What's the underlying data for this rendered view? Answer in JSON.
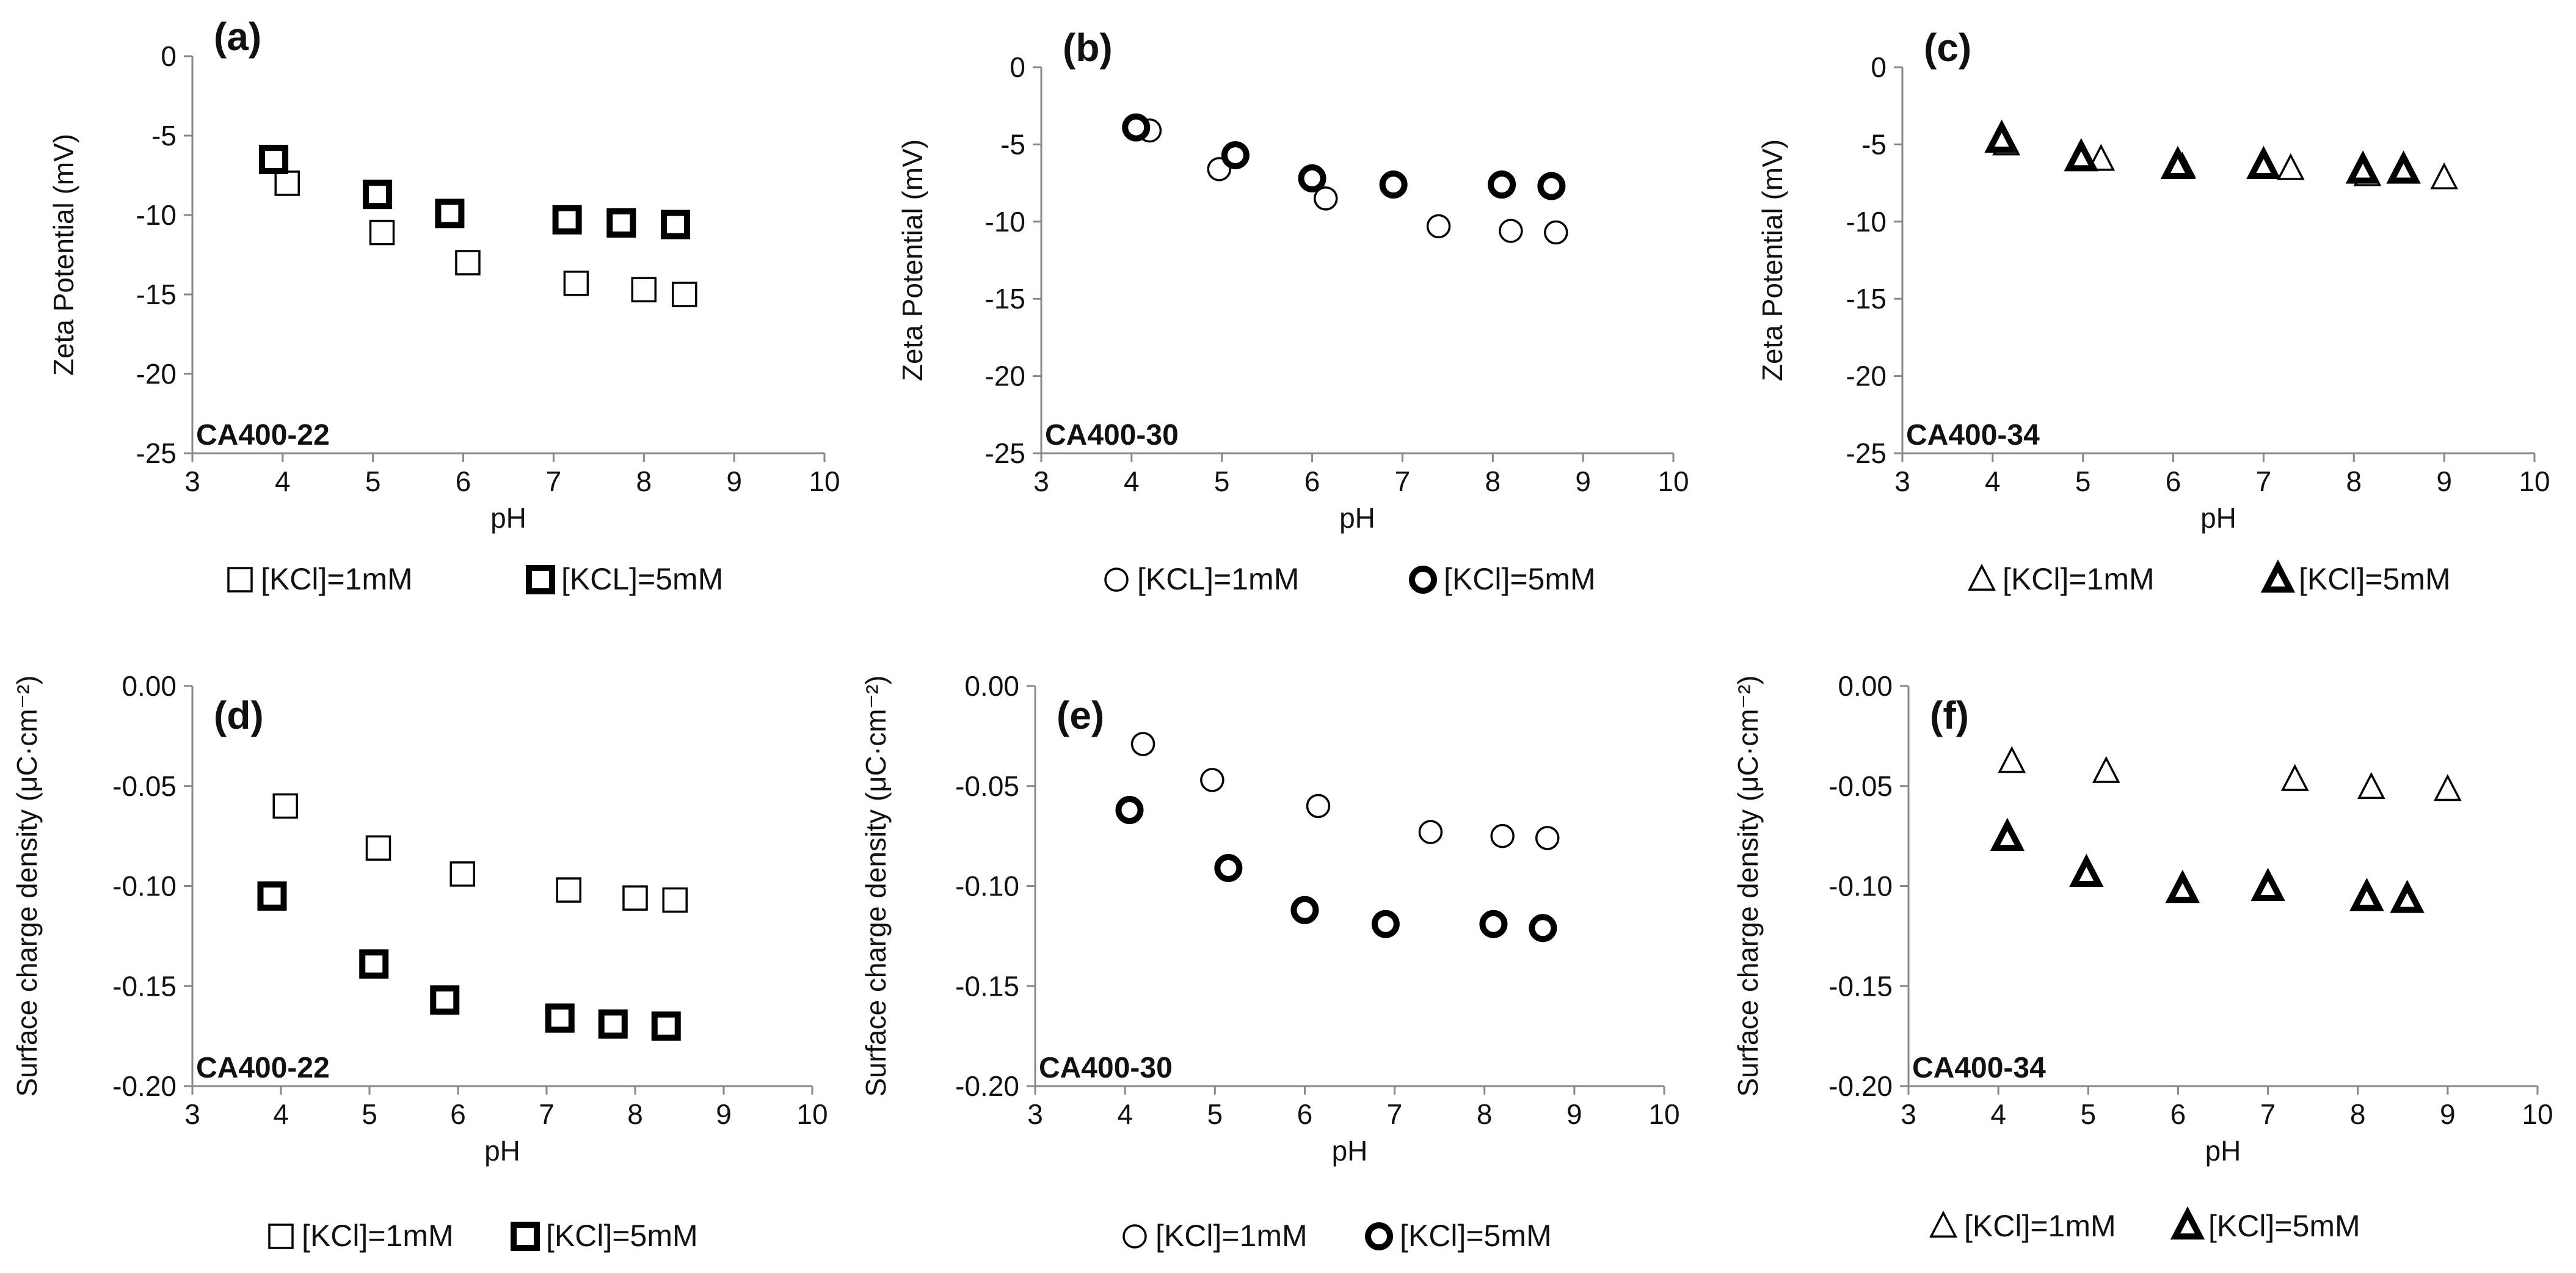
{
  "chart_data": [
    {
      "type": "scatter",
      "panel_label": "(a)",
      "sample_label": "CA400-22",
      "xlabel": "pH",
      "ylabel": "Zeta Potential (mV)",
      "xlim": [
        3,
        10
      ],
      "ylim": [
        -25,
        0
      ],
      "xticks": [
        "3",
        "4",
        "5",
        "6",
        "7",
        "8",
        "9",
        "10"
      ],
      "yticks": [
        "-25",
        "-20",
        "-15",
        "-10",
        "-5",
        "0"
      ],
      "marker": "square",
      "series": [
        {
          "name": "[KCl]=1mM",
          "bold": false,
          "x": [
            4.05,
            5.1,
            6.05,
            7.25,
            8.0,
            8.45
          ],
          "y": [
            -8.0,
            -11.1,
            -13.0,
            -14.3,
            -14.7,
            -15.0
          ]
        },
        {
          "name": "[KCL]=5mM",
          "bold": true,
          "x": [
            3.9,
            5.05,
            5.85,
            7.15,
            7.75,
            8.35
          ],
          "y": [
            -6.5,
            -8.7,
            -9.9,
            -10.3,
            -10.5,
            -10.6
          ]
        }
      ]
    },
    {
      "type": "scatter",
      "panel_label": "(b)",
      "sample_label": "CA400-30",
      "xlabel": "pH",
      "ylabel": "Zeta Potential (mV)",
      "xlim": [
        3,
        10
      ],
      "ylim": [
        -25,
        0
      ],
      "xticks": [
        "3",
        "4",
        "5",
        "6",
        "7",
        "8",
        "9",
        "10"
      ],
      "yticks": [
        "-25",
        "-20",
        "-15",
        "-10",
        "-5",
        "0"
      ],
      "marker": "circle",
      "series": [
        {
          "name": "[KCL]=1mM",
          "bold": false,
          "x": [
            4.2,
            4.97,
            6.15,
            7.4,
            8.2,
            8.7
          ],
          "y": [
            -4.1,
            -6.6,
            -8.5,
            -10.3,
            -10.6,
            -10.7
          ]
        },
        {
          "name": "[KCl]=5mM",
          "bold": true,
          "x": [
            4.05,
            5.15,
            6.0,
            6.9,
            8.1,
            8.65
          ],
          "y": [
            -3.9,
            -5.7,
            -7.2,
            -7.6,
            -7.6,
            -7.7
          ]
        }
      ]
    },
    {
      "type": "scatter",
      "panel_label": "(c)",
      "sample_label": "CA400-34",
      "xlabel": "pH",
      "ylabel": "Zeta Potential (mV)",
      "xlim": [
        3,
        10
      ],
      "ylim": [
        -25,
        0
      ],
      "xticks": [
        "3",
        "4",
        "5",
        "6",
        "7",
        "8",
        "9",
        "10"
      ],
      "yticks": [
        "-25",
        "-20",
        "-15",
        "-10",
        "-5",
        "0"
      ],
      "marker": "triangle",
      "series": [
        {
          "name": "[KCl]=1mM",
          "bold": false,
          "x": [
            4.15,
            5.2,
            6.1,
            7.3,
            8.15,
            9.0
          ],
          "y": [
            -5.0,
            -6.0,
            -6.5,
            -6.6,
            -7.0,
            -7.2
          ]
        },
        {
          "name": "[KCl]=5mM",
          "bold": true,
          "x": [
            4.1,
            4.98,
            6.05,
            7.0,
            8.1,
            8.55
          ],
          "y": [
            -4.7,
            -5.9,
            -6.4,
            -6.4,
            -6.7,
            -6.7
          ]
        }
      ]
    },
    {
      "type": "scatter",
      "panel_label": "(d)",
      "sample_label": "CA400-22",
      "xlabel": "pH",
      "ylabel": "Surface charge density (μC·cm⁻²)",
      "xlim": [
        3,
        10
      ],
      "ylim": [
        -0.2,
        0
      ],
      "xticks": [
        "3",
        "4",
        "5",
        "6",
        "7",
        "8",
        "9",
        "10"
      ],
      "yticks": [
        "-0.20",
        "-0.15",
        "-0.10",
        "-0.05",
        "0.00"
      ],
      "marker": "square",
      "series": [
        {
          "name": "[KCl]=1mM",
          "bold": false,
          "x": [
            4.05,
            5.1,
            6.05,
            7.25,
            8.0,
            8.45
          ],
          "y": [
            -0.06,
            -0.081,
            -0.094,
            -0.102,
            -0.106,
            -0.107
          ]
        },
        {
          "name": "[KCl]=5mM",
          "bold": true,
          "x": [
            3.9,
            5.05,
            5.85,
            7.15,
            7.75,
            8.35
          ],
          "y": [
            -0.105,
            -0.139,
            -0.157,
            -0.166,
            -0.169,
            -0.17
          ]
        }
      ]
    },
    {
      "type": "scatter",
      "panel_label": "(e)",
      "sample_label": "CA400-30",
      "xlabel": "pH",
      "ylabel": "Surface charge density (μC·cm⁻²)",
      "xlim": [
        3,
        10
      ],
      "ylim": [
        -0.2,
        0
      ],
      "xticks": [
        "3",
        "4",
        "5",
        "6",
        "7",
        "8",
        "9",
        "10"
      ],
      "yticks": [
        "-0.20",
        "-0.15",
        "-0.10",
        "-0.05",
        "0.00"
      ],
      "marker": "circle",
      "series": [
        {
          "name": "[KCl]=1mM",
          "bold": false,
          "x": [
            4.2,
            4.97,
            6.15,
            7.4,
            8.2,
            8.7
          ],
          "y": [
            -0.029,
            -0.047,
            -0.06,
            -0.073,
            -0.075,
            -0.076
          ]
        },
        {
          "name": "[KCl]=5mM",
          "bold": true,
          "x": [
            4.05,
            5.15,
            6.0,
            6.9,
            8.1,
            8.65
          ],
          "y": [
            -0.062,
            -0.091,
            -0.112,
            -0.119,
            -0.119,
            -0.121
          ]
        }
      ]
    },
    {
      "type": "scatter",
      "panel_label": "(f)",
      "sample_label": "CA400-34",
      "xlabel": "pH",
      "ylabel": "Surface charge density (μC·cm⁻²)",
      "xlim": [
        3,
        10
      ],
      "ylim": [
        -0.2,
        0
      ],
      "xticks": [
        "3",
        "4",
        "5",
        "6",
        "7",
        "8",
        "9",
        "10"
      ],
      "yticks": [
        "-0.20",
        "-0.15",
        "-0.10",
        "-0.05",
        "0.00"
      ],
      "marker": "triangle",
      "series": [
        {
          "name": "[KCl]=1mM",
          "bold": false,
          "x": [
            4.15,
            5.2,
            7.3,
            8.15,
            9.0
          ],
          "y": [
            -0.038,
            -0.043,
            -0.047,
            -0.051,
            -0.052
          ]
        },
        {
          "name": "[KCl]=5mM",
          "bold": true,
          "x": [
            4.1,
            4.98,
            6.05,
            7.0,
            8.1,
            8.55
          ],
          "y": [
            -0.076,
            -0.094,
            -0.102,
            -0.101,
            -0.106,
            -0.107
          ]
        }
      ]
    }
  ]
}
